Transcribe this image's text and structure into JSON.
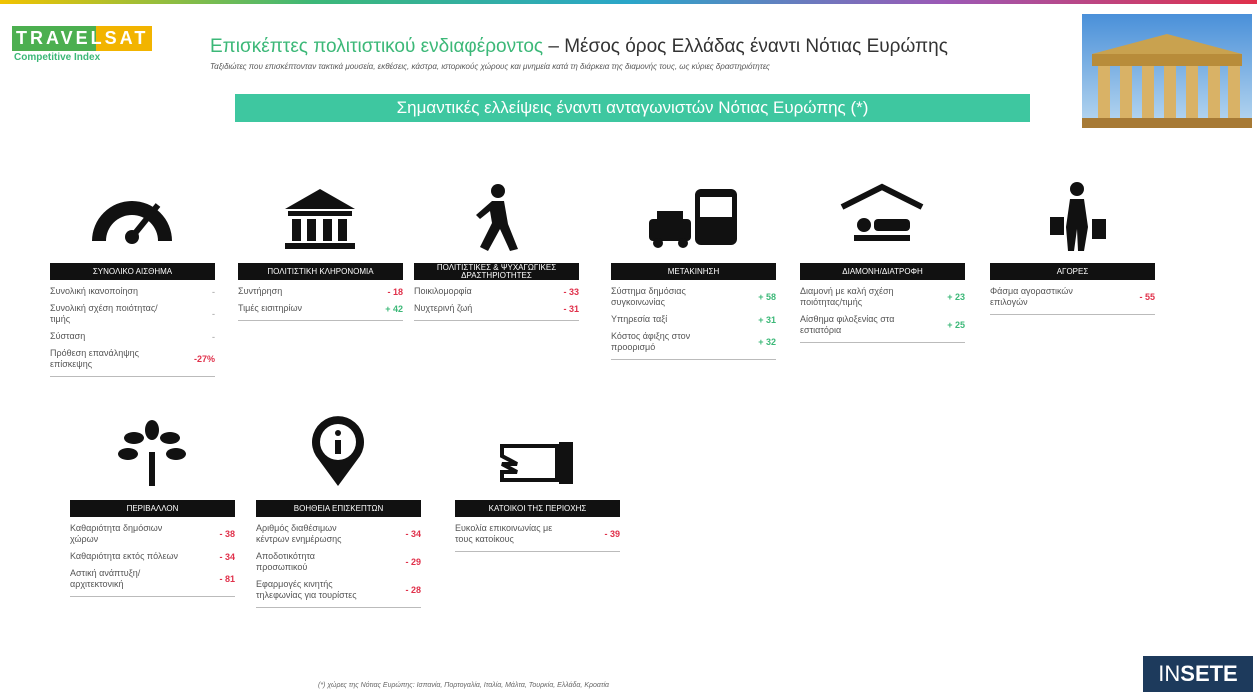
{
  "header": {
    "logo": "TRAVELSAT",
    "logo_sub": "Competitive Index",
    "title_green": "Επισκέπτες πολιτιστικού ενδιαφέροντος",
    "title_dark": "– Μέσος όρος Ελλάδας έναντι Νότιας Ευρώπης",
    "subtitle": "Ταξιδιώτες που επισκέπτονταν τακτικά μουσεία, εκθέσεις, κάστρα, ιστορικούς χώρους και μνημεία κατά τη διάρκεια της διαμονής τους, ως κύριες δραστηριότητες",
    "banner": "Σημαντικές ελλείψεις έναντι ανταγωνιστών Νότιας Ευρώπης (*)"
  },
  "panels": [
    {
      "title": "ΣΥΝΟΛΙΚΟ ΑΙΣΘΗΜΑ",
      "items": [
        {
          "label": "Συνολική ικανοποίηση",
          "value": "-"
        },
        {
          "label": "Συνολική σχέση ποιότητας/τιμής",
          "value": "-"
        },
        {
          "label": "Σύσταση",
          "value": "-"
        },
        {
          "label": "Πρόθεση επανάληψης επίσκεψης",
          "value": "-27%"
        }
      ]
    },
    {
      "title": "ΠΟΛΙΤΙΣΤΙΚΗ ΚΛΗΡΟΝΟΜΙΑ",
      "items": [
        {
          "label": "Συντήρηση",
          "value": "- 18"
        },
        {
          "label": "Τιμές εισιτηρίων",
          "value": "+ 42"
        }
      ]
    },
    {
      "title": "ΠΟΛΙΤΙΣΤΙΚΕΣ & ΨΥΧΑΓΩΓΙΚΕΣ ΔΡΑΣΤΗΡΙΟΤΗΤΕΣ",
      "items": [
        {
          "label": "Ποικιλομορφία",
          "value": "- 33"
        },
        {
          "label": "Νυχτερινή ζωή",
          "value": "- 31"
        }
      ]
    },
    {
      "title": "ΜΕΤΑΚΙΝΗΣΗ",
      "items": [
        {
          "label": "Σύστημα δημόσιας συγκοινωνίας",
          "value": "+ 58"
        },
        {
          "label": "Υπηρεσία ταξί",
          "value": "+ 31"
        },
        {
          "label": "Κόστος άφιξης στον προορισμό",
          "value": "+ 32"
        }
      ]
    },
    {
      "title": "ΔΙΑΜΟΝΗ/ΔΙΑΤΡΟΦΗ",
      "items": [
        {
          "label": "Διαμονή με καλή σχέση ποιότητας/τιμής",
          "value": "+ 23"
        },
        {
          "label": "Αίσθημα φιλοξενίας στα εστιατόρια",
          "value": "+ 25"
        }
      ]
    },
    {
      "title": "ΑΓΟΡΕΣ",
      "items": [
        {
          "label": "Φάσμα αγοραστικών επιλογών",
          "value": "- 55"
        }
      ]
    },
    {
      "title": "ΠΕΡΙΒΑΛΛΟΝ",
      "items": [
        {
          "label": "Καθαριότητα δημόσιων χώρων",
          "value": "- 38"
        },
        {
          "label": "Καθαριότητα εκτός πόλεων",
          "value": "- 34"
        },
        {
          "label": "Αστική ανάπτυξη/αρχιτεκτονική",
          "value": "- 81"
        }
      ]
    },
    {
      "title": "ΒΟΗΘΕΙΑ ΕΠΙΣΚΕΠΤΩΝ",
      "items": [
        {
          "label": "Αριθμός διαθέσιμων κέντρων ενημέρωσης",
          "value": "- 34"
        },
        {
          "label": "Αποδοτικότητα προσωπικού",
          "value": "- 29"
        },
        {
          "label": "Εφαρμογές κινητής τηλεφωνίας για τουρίστες",
          "value": "- 28"
        }
      ]
    },
    {
      "title": "ΚΑΤΟΙΚΟΙ ΤΗΣ ΠΕΡΙΟΧΗΣ",
      "items": [
        {
          "label": "Ευκολία επικοινωνίας με τους κατοίκους",
          "value": "- 39"
        }
      ]
    }
  ],
  "footer": {
    "note": "(*) χώρες της Νότιας Ευρώπης: Ισπανία, Πορτογαλία, Ιταλία, Μάλτα, Τουρκία, Ελλάδα, Κροατία",
    "brand_a": "IN",
    "brand_b": "SETE"
  }
}
